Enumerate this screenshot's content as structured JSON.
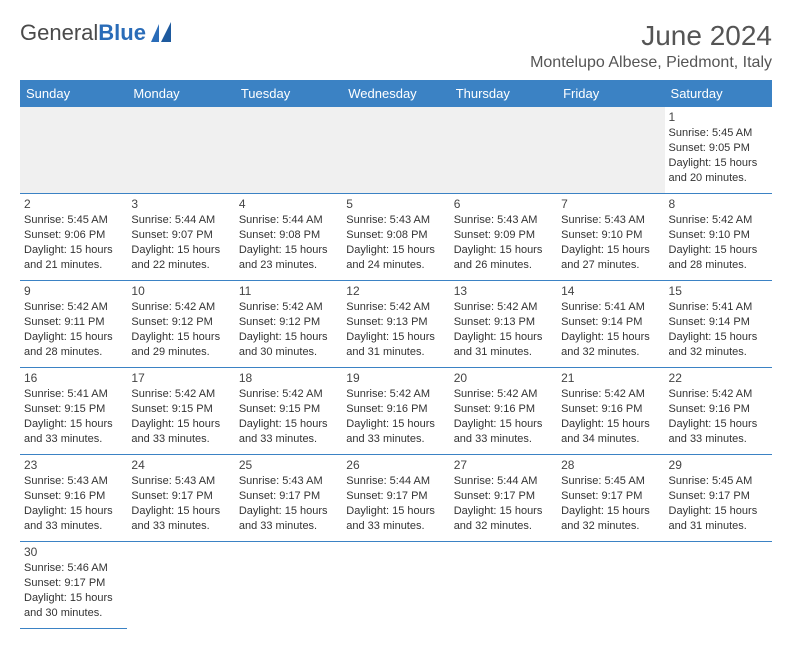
{
  "brand": {
    "name_part1": "General",
    "name_part2": "Blue"
  },
  "title": "June 2024",
  "location": "Montelupo Albese, Piedmont, Italy",
  "days_of_week": [
    "Sunday",
    "Monday",
    "Tuesday",
    "Wednesday",
    "Thursday",
    "Friday",
    "Saturday"
  ],
  "colors": {
    "header_bg": "#3b82c4",
    "header_text": "#ffffff",
    "border": "#3b82c4",
    "text": "#333333"
  },
  "weeks": [
    [
      null,
      null,
      null,
      null,
      null,
      null,
      {
        "day": "1",
        "sunrise": "Sunrise: 5:45 AM",
        "sunset": "Sunset: 9:05 PM",
        "daylight": "Daylight: 15 hours and 20 minutes."
      }
    ],
    [
      {
        "day": "2",
        "sunrise": "Sunrise: 5:45 AM",
        "sunset": "Sunset: 9:06 PM",
        "daylight": "Daylight: 15 hours and 21 minutes."
      },
      {
        "day": "3",
        "sunrise": "Sunrise: 5:44 AM",
        "sunset": "Sunset: 9:07 PM",
        "daylight": "Daylight: 15 hours and 22 minutes."
      },
      {
        "day": "4",
        "sunrise": "Sunrise: 5:44 AM",
        "sunset": "Sunset: 9:08 PM",
        "daylight": "Daylight: 15 hours and 23 minutes."
      },
      {
        "day": "5",
        "sunrise": "Sunrise: 5:43 AM",
        "sunset": "Sunset: 9:08 PM",
        "daylight": "Daylight: 15 hours and 24 minutes."
      },
      {
        "day": "6",
        "sunrise": "Sunrise: 5:43 AM",
        "sunset": "Sunset: 9:09 PM",
        "daylight": "Daylight: 15 hours and 26 minutes."
      },
      {
        "day": "7",
        "sunrise": "Sunrise: 5:43 AM",
        "sunset": "Sunset: 9:10 PM",
        "daylight": "Daylight: 15 hours and 27 minutes."
      },
      {
        "day": "8",
        "sunrise": "Sunrise: 5:42 AM",
        "sunset": "Sunset: 9:10 PM",
        "daylight": "Daylight: 15 hours and 28 minutes."
      }
    ],
    [
      {
        "day": "9",
        "sunrise": "Sunrise: 5:42 AM",
        "sunset": "Sunset: 9:11 PM",
        "daylight": "Daylight: 15 hours and 28 minutes."
      },
      {
        "day": "10",
        "sunrise": "Sunrise: 5:42 AM",
        "sunset": "Sunset: 9:12 PM",
        "daylight": "Daylight: 15 hours and 29 minutes."
      },
      {
        "day": "11",
        "sunrise": "Sunrise: 5:42 AM",
        "sunset": "Sunset: 9:12 PM",
        "daylight": "Daylight: 15 hours and 30 minutes."
      },
      {
        "day": "12",
        "sunrise": "Sunrise: 5:42 AM",
        "sunset": "Sunset: 9:13 PM",
        "daylight": "Daylight: 15 hours and 31 minutes."
      },
      {
        "day": "13",
        "sunrise": "Sunrise: 5:42 AM",
        "sunset": "Sunset: 9:13 PM",
        "daylight": "Daylight: 15 hours and 31 minutes."
      },
      {
        "day": "14",
        "sunrise": "Sunrise: 5:41 AM",
        "sunset": "Sunset: 9:14 PM",
        "daylight": "Daylight: 15 hours and 32 minutes."
      },
      {
        "day": "15",
        "sunrise": "Sunrise: 5:41 AM",
        "sunset": "Sunset: 9:14 PM",
        "daylight": "Daylight: 15 hours and 32 minutes."
      }
    ],
    [
      {
        "day": "16",
        "sunrise": "Sunrise: 5:41 AM",
        "sunset": "Sunset: 9:15 PM",
        "daylight": "Daylight: 15 hours and 33 minutes."
      },
      {
        "day": "17",
        "sunrise": "Sunrise: 5:42 AM",
        "sunset": "Sunset: 9:15 PM",
        "daylight": "Daylight: 15 hours and 33 minutes."
      },
      {
        "day": "18",
        "sunrise": "Sunrise: 5:42 AM",
        "sunset": "Sunset: 9:15 PM",
        "daylight": "Daylight: 15 hours and 33 minutes."
      },
      {
        "day": "19",
        "sunrise": "Sunrise: 5:42 AM",
        "sunset": "Sunset: 9:16 PM",
        "daylight": "Daylight: 15 hours and 33 minutes."
      },
      {
        "day": "20",
        "sunrise": "Sunrise: 5:42 AM",
        "sunset": "Sunset: 9:16 PM",
        "daylight": "Daylight: 15 hours and 33 minutes."
      },
      {
        "day": "21",
        "sunrise": "Sunrise: 5:42 AM",
        "sunset": "Sunset: 9:16 PM",
        "daylight": "Daylight: 15 hours and 34 minutes."
      },
      {
        "day": "22",
        "sunrise": "Sunrise: 5:42 AM",
        "sunset": "Sunset: 9:16 PM",
        "daylight": "Daylight: 15 hours and 33 minutes."
      }
    ],
    [
      {
        "day": "23",
        "sunrise": "Sunrise: 5:43 AM",
        "sunset": "Sunset: 9:16 PM",
        "daylight": "Daylight: 15 hours and 33 minutes."
      },
      {
        "day": "24",
        "sunrise": "Sunrise: 5:43 AM",
        "sunset": "Sunset: 9:17 PM",
        "daylight": "Daylight: 15 hours and 33 minutes."
      },
      {
        "day": "25",
        "sunrise": "Sunrise: 5:43 AM",
        "sunset": "Sunset: 9:17 PM",
        "daylight": "Daylight: 15 hours and 33 minutes."
      },
      {
        "day": "26",
        "sunrise": "Sunrise: 5:44 AM",
        "sunset": "Sunset: 9:17 PM",
        "daylight": "Daylight: 15 hours and 33 minutes."
      },
      {
        "day": "27",
        "sunrise": "Sunrise: 5:44 AM",
        "sunset": "Sunset: 9:17 PM",
        "daylight": "Daylight: 15 hours and 32 minutes."
      },
      {
        "day": "28",
        "sunrise": "Sunrise: 5:45 AM",
        "sunset": "Sunset: 9:17 PM",
        "daylight": "Daylight: 15 hours and 32 minutes."
      },
      {
        "day": "29",
        "sunrise": "Sunrise: 5:45 AM",
        "sunset": "Sunset: 9:17 PM",
        "daylight": "Daylight: 15 hours and 31 minutes."
      }
    ],
    [
      {
        "day": "30",
        "sunrise": "Sunrise: 5:46 AM",
        "sunset": "Sunset: 9:17 PM",
        "daylight": "Daylight: 15 hours and 30 minutes."
      },
      null,
      null,
      null,
      null,
      null,
      null
    ]
  ]
}
